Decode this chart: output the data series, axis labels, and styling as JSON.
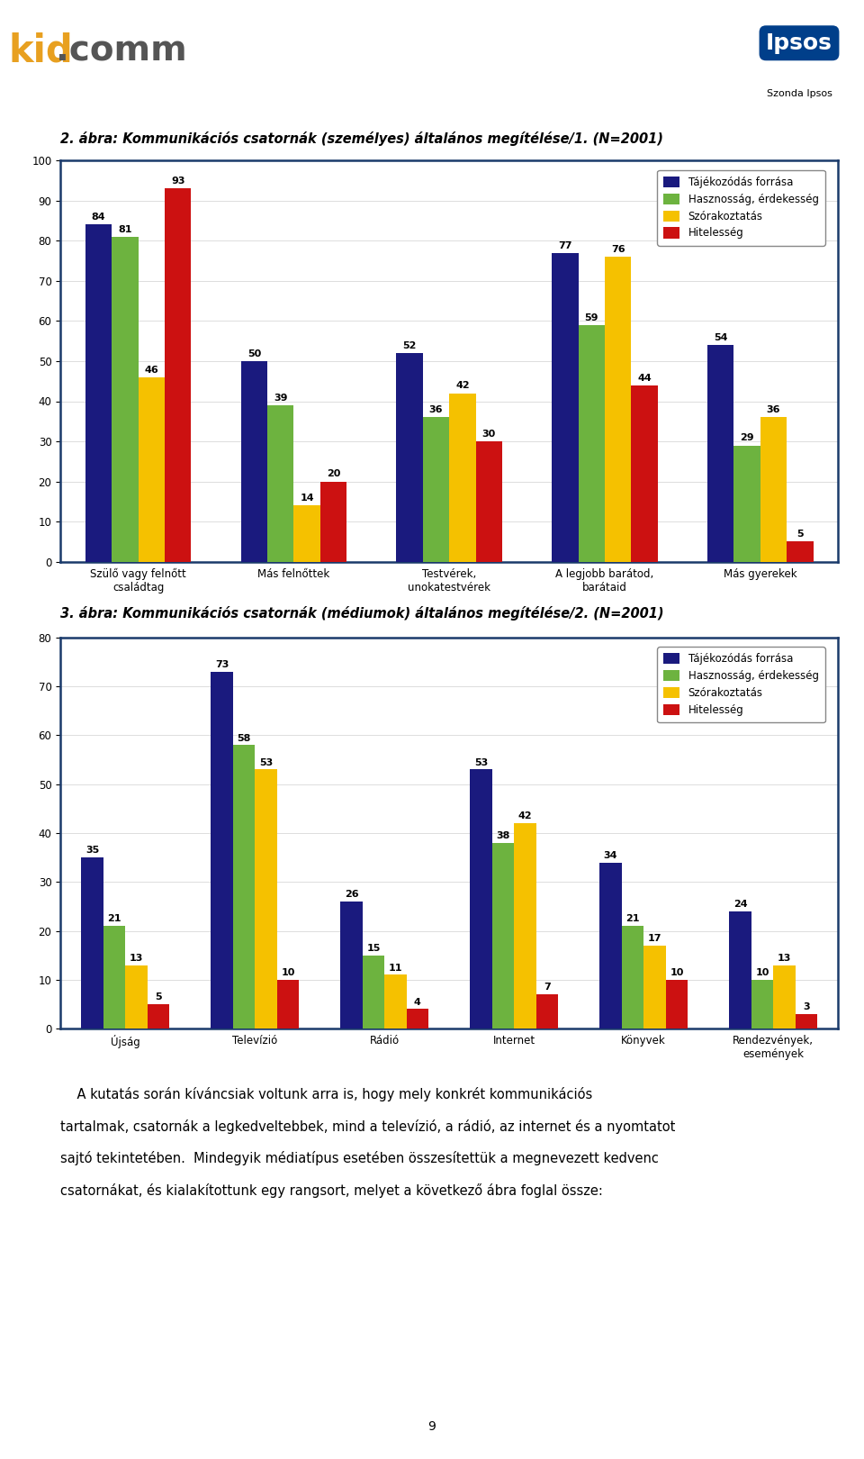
{
  "chart1": {
    "title": "2. ábra: Kommunikációs csatornák (személyes) általános megítélése/1. (N=2001)",
    "categories": [
      "Szülő vagy felnőtt\ncsaládtag",
      "Más felnőttek",
      "Testvérek,\nunokatestvérek",
      "A legjobb barátod,\nbarátaid",
      "Más gyerekek"
    ],
    "series": {
      "Tájékozódás forrása": [
        84,
        50,
        52,
        77,
        54
      ],
      "Hasznosság, érdekesség": [
        81,
        39,
        36,
        59,
        29
      ],
      "Szórakoztatás": [
        46,
        14,
        42,
        76,
        36
      ],
      "Hitelesség": [
        93,
        20,
        30,
        44,
        5
      ]
    },
    "ylim": [
      0,
      100
    ],
    "yticks": [
      0,
      10,
      20,
      30,
      40,
      50,
      60,
      70,
      80,
      90,
      100
    ]
  },
  "chart2": {
    "title": "3. ábra: Kommunikációs csatornák (médiumok) általános megítélése/2. (N=2001)",
    "categories": [
      "Újság",
      "Televízió",
      "Rádió",
      "Internet",
      "Könyvek",
      "Rendezvények,\nesemények"
    ],
    "series": {
      "Tájékozódás forrása": [
        35,
        73,
        26,
        53,
        34,
        24
      ],
      "Hasznosság, érdekesség": [
        21,
        58,
        15,
        38,
        21,
        10
      ],
      "Szórakoztatás": [
        13,
        53,
        11,
        42,
        17,
        13
      ],
      "Hitelesség": [
        5,
        10,
        4,
        7,
        10,
        3
      ]
    },
    "ylim": [
      0,
      80
    ],
    "yticks": [
      0,
      10,
      20,
      30,
      40,
      50,
      60,
      70,
      80
    ]
  },
  "colors": {
    "Tájékozódás forrása": "#1a1a7e",
    "Hasznosság, érdekesség": "#6db33f",
    "Szórakoztatás": "#f5c100",
    "Hitelesség": "#cc1111"
  },
  "legend_labels": [
    "Tájékozódás forrása",
    "Hasznosság, érdekesség",
    "Szórakoztatás",
    "Hitelesség"
  ],
  "body_text_lines": [
    "    A kutatás során kíváncsiak voltunk arra is, hogy mely konkrét kommunikációs",
    "tartalmak, csatornák a legkedveltebbek, mind a televízió, a rádió, az internet és a nyomtatot",
    "sajtó tekintetében.  Mindegyik médiatípus esetében összesítettük a megnevezett kedvenc",
    "csatornákat, és kialakítottunk egy rangsort, melyet a következő ábra foglal össze:"
  ],
  "page_number": "9",
  "background_color": "#ffffff",
  "chart_border_color": "#1a3a6b",
  "bar_width": 0.17,
  "label_fontsize": 8.0,
  "axis_fontsize": 8.5,
  "title_fontsize": 10.5,
  "body_fontsize": 10.5
}
